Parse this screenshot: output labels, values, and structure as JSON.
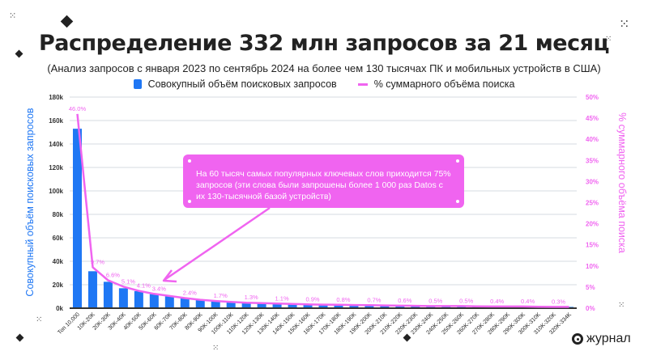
{
  "header": {
    "title": "Распределение 332 млн запросов за 21 месяц",
    "subtitle": "(Анализ запросов с января 2023 по сентябрь 2024 на более чем 130 тысячах ПК и мобильных устройств в США)"
  },
  "legend": {
    "bar_label": "Совокупный объём поисковых запросов",
    "line_label": "% суммарного объёма поиска"
  },
  "colors": {
    "bar": "#1f77f4",
    "line": "#f064f0",
    "grid": "#d6dbe0",
    "axis": "#333333"
  },
  "callout": {
    "text": "На 60 тысяч самых популярных ключевых слов приходится 75% запросов (эти слова были запрошены более 1 000 раз Datos с их 130-тысячной базой устройств)"
  },
  "logo": {
    "text": "журнал",
    "icon": "logo-mark-icon"
  },
  "chart_data": {
    "type": "bar",
    "title": "Распределение 332 млн запросов за 21 месяц",
    "subtitle": "(Анализ запросов с января 2023 по сентябрь 2024 на более чем 130 тысячах ПК и мобильных устройств в США)",
    "xlabel": "",
    "ylabel": "Совокупный объём поисковых запросов",
    "ylabel_right": "% суммарного объёма поиска",
    "ylim": [
      0,
      180000
    ],
    "ylim_right": [
      0,
      50
    ],
    "yticks": [
      "0k",
      "20k",
      "40k",
      "60k",
      "80k",
      "100k",
      "120k",
      "140k",
      "160k",
      "180k"
    ],
    "yticks_right": [
      "0%",
      "5%",
      "10%",
      "15%",
      "20%",
      "25%",
      "30%",
      "35%",
      "40%",
      "45%",
      "50%"
    ],
    "grid": true,
    "legend_position": "top",
    "categories": [
      "Топ 10,000",
      "10K-20K",
      "20K-30K",
      "30K-40K",
      "40K-50K",
      "50K-60K",
      "60K-70K",
      "70K-80K",
      "80K-90K",
      "90K-100K",
      "100K-110K",
      "110K-120K",
      "120K-130K",
      "130K-140K",
      "140K-150K",
      "150K-160K",
      "160K-170K",
      "170K-180K",
      "180K-190K",
      "190K-200K",
      "200K-210K",
      "210K-220K",
      "220K-230K",
      "230K-240K",
      "240K-250K",
      "250K-260K",
      "260K-270K",
      "270K-280K",
      "280K-290K",
      "290K-300K",
      "300K-310K",
      "310K-320K",
      "320K-334K"
    ],
    "series": [
      {
        "name": "Совокупный объём поисковых запросов",
        "type": "bar",
        "values": [
          153000,
          31500,
          22500,
          17000,
          14500,
          12000,
          10000,
          8500,
          7000,
          6000,
          5200,
          4500,
          4000,
          3600,
          3200,
          2900,
          2700,
          2500,
          2300,
          2200,
          2000,
          1900,
          1800,
          1700,
          1600,
          1500,
          1450,
          1400,
          1350,
          1300,
          1250,
          1200,
          1100
        ]
      },
      {
        "name": "% суммарного объёма поиска",
        "type": "line",
        "values": [
          46.0,
          9.7,
          6.6,
          5.1,
          4.1,
          3.4,
          2.9,
          2.4,
          2.0,
          1.7,
          1.5,
          1.3,
          1.2,
          1.1,
          1.0,
          0.9,
          0.85,
          0.8,
          0.75,
          0.7,
          0.65,
          0.6,
          0.55,
          0.5,
          0.5,
          0.5,
          0.45,
          0.4,
          0.4,
          0.4,
          0.35,
          0.3,
          0.3
        ],
        "labels": {
          "0": "46.0%",
          "1": "9.7%",
          "2": "6.6%",
          "3": "5.1%",
          "4": "4.1%",
          "5": "3.4%",
          "7": "2.4%",
          "9": "1.7%",
          "11": "1.3%",
          "13": "1.1%",
          "15": "0.9%",
          "17": "0.8%",
          "19": "0.7%",
          "21": "0.6%",
          "23": "0.5%",
          "25": "0.5%",
          "27": "0.4%",
          "29": "0.4%",
          "31": "0.3%"
        }
      }
    ],
    "annotations": [
      "На 60 тысяч самых популярных ключевых слов приходится 75% запросов (эти слова были запрошены более 1 000 раз Datos с их 130-тысячной базой устройств)"
    ]
  }
}
